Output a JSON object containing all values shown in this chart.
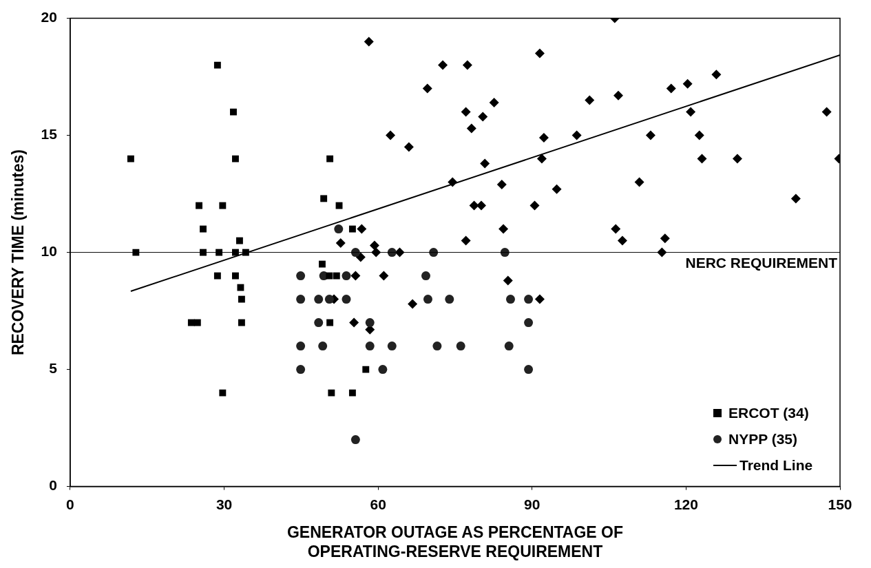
{
  "chart_data": {
    "type": "scatter",
    "xlabel": "GENERATOR OUTAGE AS PERCENTAGE OF OPERATING-RESERVE REQUIREMENT",
    "ylabel": "RECOVERY TIME (minutes)",
    "xlim": [
      0,
      150
    ],
    "xticks": [
      0,
      30,
      60,
      90,
      120,
      150
    ],
    "ylim": [
      0,
      20
    ],
    "yticks": [
      0,
      5,
      10,
      15,
      20
    ],
    "grid": false,
    "legend": "bottom right",
    "ref_lines": [
      {
        "axis": "y",
        "value": 10,
        "label": "NERC REQUIREMENT",
        "color": "#000000"
      }
    ],
    "series": [
      {
        "name": "ERCOT (34)",
        "color": "#000000",
        "marker": "square",
        "x": [
          11.8,
          12.8,
          28.7,
          31.8,
          32.2,
          25.1,
          29.7,
          25.9,
          25.9,
          29,
          32.2,
          34.2,
          33,
          28.7,
          32.2,
          33.2,
          33.4,
          33.4,
          23.6,
          24.8,
          29.7,
          50.6,
          49.4,
          52.4,
          55,
          49.1,
          50.5,
          51.9,
          50.6,
          50.9,
          57.6,
          55
        ],
        "values": [
          14,
          10,
          18,
          16,
          14,
          12,
          12,
          11,
          10,
          10,
          10,
          10,
          10.5,
          9,
          9,
          8.5,
          8,
          7,
          7,
          7,
          4,
          14,
          12.3,
          12,
          11,
          9.5,
          9,
          9,
          7,
          4,
          5,
          4
        ]
      },
      {
        "name": "NYPP (35)",
        "color": "#222222",
        "marker": "circle",
        "x": [
          44.9,
          44.9,
          44.9,
          44.9,
          48.4,
          48.4,
          49.2,
          49.4,
          50.5,
          52.3,
          53.8,
          53.8,
          55.6,
          55.6,
          58.4,
          58.4,
          60.9,
          62.7,
          62.7,
          69.3,
          69.7,
          70.8,
          71.5,
          73.9,
          76.1,
          84.7,
          85.5,
          85.8,
          89.3,
          89.3,
          89.3
        ],
        "values": [
          9,
          8,
          6,
          5,
          8,
          7,
          6,
          9,
          8,
          11,
          9,
          8,
          10,
          2,
          7,
          6,
          5,
          10,
          6,
          9,
          8,
          10,
          6,
          8,
          6,
          10,
          6,
          8,
          8,
          7,
          5
        ]
      },
      {
        "color": "#000000",
        "marker": "diamond",
        "x": [
          58.2,
          72.6,
          77.4,
          69.6,
          77.1,
          80.4,
          78.2,
          62.4,
          66,
          80.8,
          74.5,
          78.7,
          80.1,
          77.1,
          52.7,
          56.8,
          59.3,
          56.6,
          59.6,
          64.2,
          55.6,
          61.1,
          51.4,
          66.7,
          55.3,
          58.4,
          106.1,
          91.5,
          82.6,
          101.2,
          106.8,
          92.3,
          98.7,
          91.9,
          84.1,
          94.8,
          90.5,
          84.4,
          106.3,
          107.6,
          113.1,
          110.9,
          85.3,
          91.5,
          117.1,
          120.3,
          125.9,
          120.9,
          122.6,
          123.1,
          130,
          147.4,
          149.8,
          141.4,
          115.9,
          115.3
        ],
        "values": [
          19,
          18,
          18,
          17,
          16,
          15.8,
          15.3,
          15,
          14.5,
          13.8,
          13,
          12,
          12,
          10.5,
          10.4,
          11,
          10.3,
          9.8,
          10,
          10,
          9,
          9,
          8,
          7.8,
          7,
          6.7,
          20,
          18.5,
          16.4,
          16.5,
          16.7,
          14.9,
          15,
          14,
          12.9,
          12.7,
          12,
          11,
          11,
          10.5,
          15,
          13,
          8.8,
          8,
          17,
          17.2,
          17.6,
          16,
          15,
          14,
          14,
          16,
          14,
          12.3,
          10.6,
          10
        ]
      },
      {
        "name": "Trend Line",
        "type": "line",
        "color": "#000000",
        "marker": "none",
        "x": [
          11.8,
          150
        ],
        "values": [
          8.34,
          18.43
        ]
      }
    ]
  }
}
